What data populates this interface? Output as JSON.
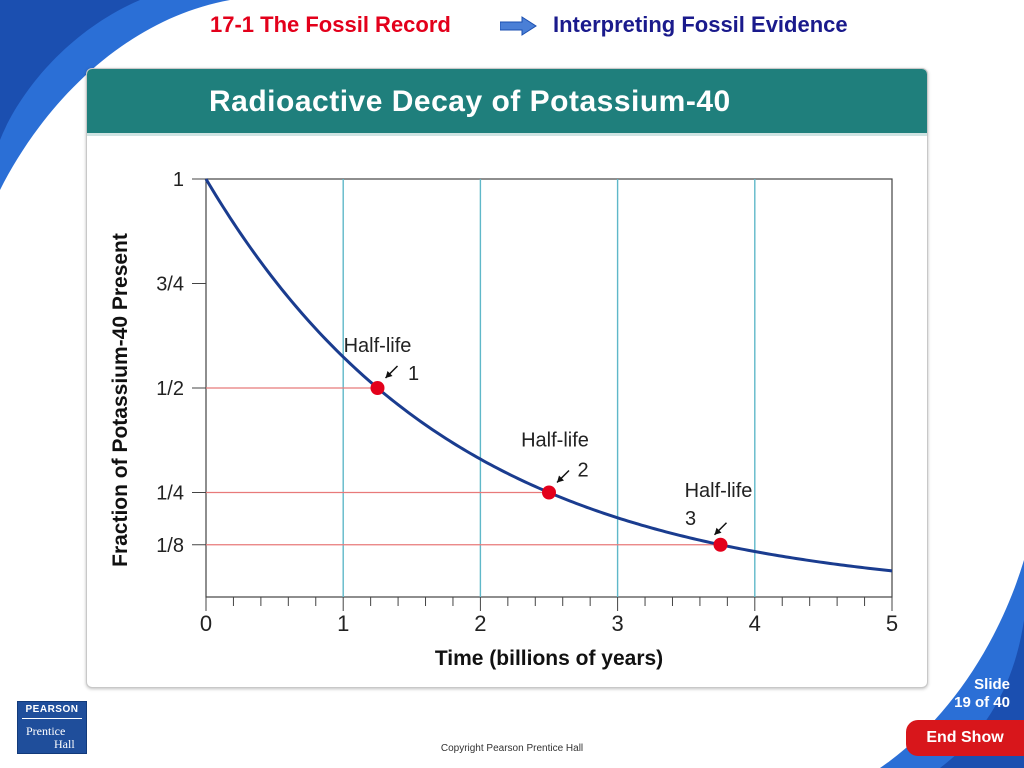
{
  "header": {
    "section_title": "17-1 The Fossil Record",
    "arrow_icon": "right-arrow-icon",
    "topic_title": "Interpreting Fossil Evidence"
  },
  "chart_data": {
    "type": "line",
    "title": "Radioactive Decay of Potassium-40",
    "xlabel": "Time (billions of years)",
    "ylabel": "Fraction of Potassium-40 Present",
    "xlim": [
      0,
      5
    ],
    "ylim": [
      0,
      1
    ],
    "x_ticks": [
      "0",
      "1",
      "2",
      "3",
      "4",
      "5"
    ],
    "y_ticks": [
      {
        "label": "1",
        "value": 1
      },
      {
        "label": "3/4",
        "value": 0.75
      },
      {
        "label": "1/2",
        "value": 0.5
      },
      {
        "label": "1/4",
        "value": 0.25
      },
      {
        "label": "1/8",
        "value": 0.125
      }
    ],
    "half_life": 1.25,
    "series": [
      {
        "x": [
          0,
          0.5,
          1,
          1.25,
          1.5,
          2,
          2.5,
          3,
          3.5,
          3.75,
          4,
          4.5,
          5
        ],
        "y": [
          1,
          0.758,
          0.574,
          0.5,
          0.435,
          0.33,
          0.25,
          0.189,
          0.144,
          0.125,
          0.109,
          0.082,
          0.0625
        ]
      }
    ],
    "half_life_points": [
      {
        "x": 1.25,
        "y": 0.5,
        "label": "Half-life",
        "number": "1"
      },
      {
        "x": 2.5,
        "y": 0.25,
        "label": "Half-life",
        "number": "2"
      },
      {
        "x": 3.75,
        "y": 0.125,
        "label": "Half-life",
        "number": "3"
      }
    ],
    "vertical_gridlines": [
      1,
      2,
      3,
      4
    ],
    "colors": {
      "curve": "#1a3c8f",
      "points": "#e3001b",
      "reference_lines": "#e87a7a",
      "gridlines": "#5fb8c9",
      "title_bar": "#1f7f7c"
    }
  },
  "footer": {
    "logo_top": "PEARSON",
    "logo_line1": "Prentice",
    "logo_line2": "Hall",
    "copyright": "Copyright Pearson Prentice Hall",
    "slide_label": "Slide",
    "slide_position": "19 of 40",
    "end_show_label": "End Show"
  }
}
